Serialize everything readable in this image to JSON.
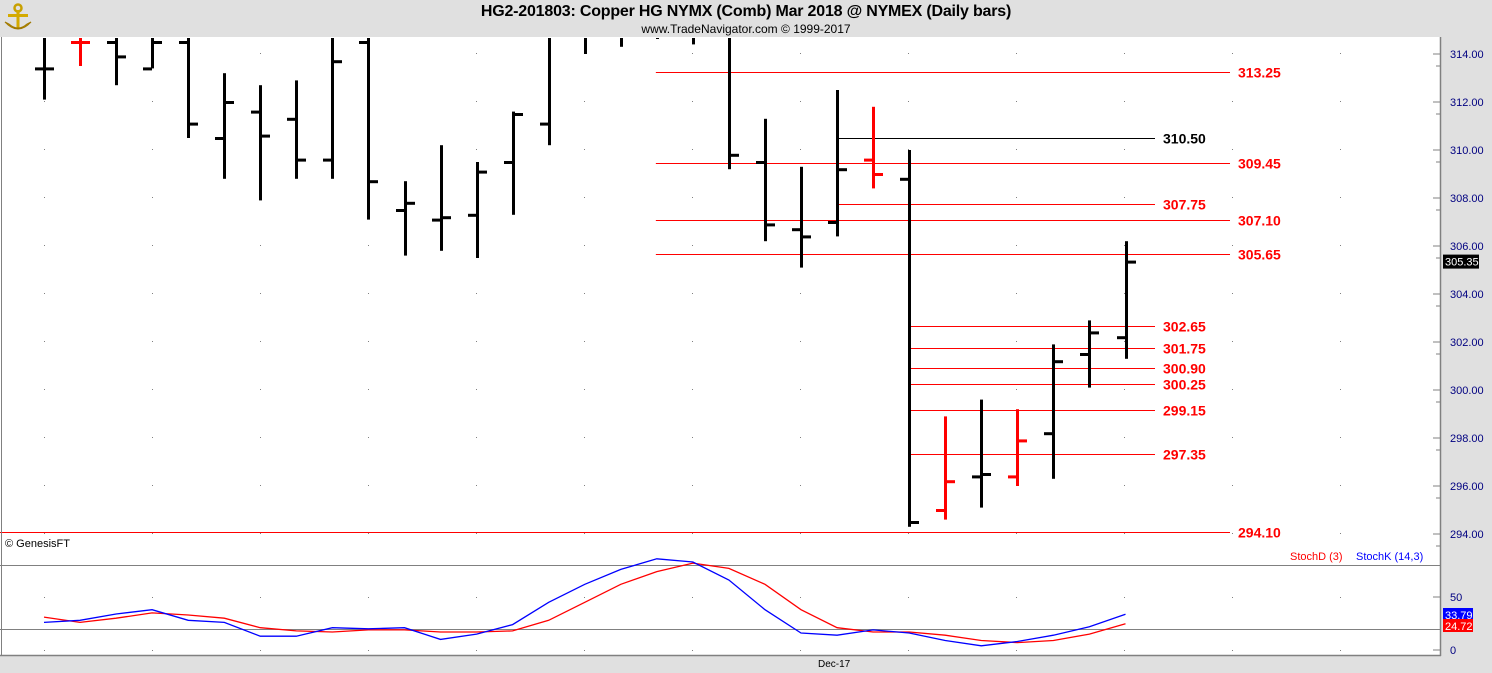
{
  "header": {
    "title": "HG2-201803:  Copper HG NYMX (Comb) Mar 2018 @ NYMEX  (Daily bars)",
    "subtitle": "www.TradeNavigator.com © 1999-2017"
  },
  "copyright": "© GenesisFT",
  "colors": {
    "up": "#000000",
    "down": "#ff0000",
    "stochD": "#ff0000",
    "stochK": "#0000ff",
    "grid": "#808080"
  },
  "chart_data": [
    {
      "type": "ohlc",
      "ylim": [
        294,
        314.8
      ],
      "yticks": [
        "314.00",
        "312.00",
        "310.00",
        "308.00",
        "306.00",
        "304.00",
        "302.00",
        "300.00",
        "298.00",
        "296.00",
        "294.00"
      ],
      "xlabel_ticks": [
        {
          "label": "Dec-17",
          "bar": 22
        }
      ],
      "last_price": "305.35",
      "bars": [
        {
          "h": 316,
          "l": 312.1,
          "o": 313.4,
          "c": 313.4,
          "color": "black"
        },
        {
          "h": 316,
          "l": 313.5,
          "o": 314.5,
          "c": 314.5,
          "color": "red"
        },
        {
          "h": 316,
          "l": 312.7,
          "o": 314.5,
          "c": 313.9,
          "color": "black"
        },
        {
          "h": 316,
          "l": 313.4,
          "o": 313.4,
          "c": 314.5,
          "color": "black"
        },
        {
          "h": 316,
          "l": 310.5,
          "o": 314.5,
          "c": 311.1,
          "color": "black"
        },
        {
          "h": 313.2,
          "l": 308.8,
          "o": 310.5,
          "c": 312.0,
          "color": "black"
        },
        {
          "h": 312.7,
          "l": 307.9,
          "o": 311.6,
          "c": 310.6,
          "color": "black"
        },
        {
          "h": 312.9,
          "l": 308.8,
          "o": 311.3,
          "c": 309.6,
          "color": "black"
        },
        {
          "h": 316,
          "l": 308.8,
          "o": 309.6,
          "c": 313.7,
          "color": "black"
        },
        {
          "h": 316,
          "l": 307.1,
          "o": 314.5,
          "c": 308.7,
          "color": "black"
        },
        {
          "h": 308.7,
          "l": 305.6,
          "o": 307.5,
          "c": 307.8,
          "color": "black"
        },
        {
          "h": 310.2,
          "l": 305.8,
          "o": 307.1,
          "c": 307.2,
          "color": "black"
        },
        {
          "h": 309.5,
          "l": 305.5,
          "o": 307.3,
          "c": 309.1,
          "color": "black"
        },
        {
          "h": 311.6,
          "l": 307.3,
          "o": 309.5,
          "c": 311.5,
          "color": "black"
        },
        {
          "h": 316,
          "l": 310.2,
          "o": 311.1,
          "c": 315.5,
          "color": "black"
        },
        {
          "h": 316,
          "l": 314.0,
          "o": 315.5,
          "c": 315.5,
          "color": "black"
        },
        {
          "h": 316,
          "l": 314.3,
          "o": 315.5,
          "c": 315.5,
          "color": "black"
        },
        {
          "h": 316,
          "l": 315.2,
          "o": 315.5,
          "c": 315.5,
          "color": "black"
        },
        {
          "h": 316,
          "l": 314.4,
          "o": 315.5,
          "c": 315.5,
          "color": "black"
        },
        {
          "h": 316,
          "l": 309.2,
          "o": 315.5,
          "c": 309.8,
          "color": "black"
        },
        {
          "h": 311.3,
          "l": 306.2,
          "o": 309.5,
          "c": 306.9,
          "color": "black"
        },
        {
          "h": 309.3,
          "l": 305.1,
          "o": 306.7,
          "c": 306.4,
          "color": "black"
        },
        {
          "h": 312.5,
          "l": 306.4,
          "o": 307.0,
          "c": 309.2,
          "color": "black"
        },
        {
          "h": 311.8,
          "l": 308.4,
          "o": 309.6,
          "c": 309.0,
          "color": "red"
        },
        {
          "h": 310.0,
          "l": 294.3,
          "o": 308.8,
          "c": 294.5,
          "color": "black"
        },
        {
          "h": 298.9,
          "l": 294.6,
          "o": 295.0,
          "c": 296.2,
          "color": "red"
        },
        {
          "h": 299.6,
          "l": 295.1,
          "o": 296.4,
          "c": 296.5,
          "color": "black"
        },
        {
          "h": 299.2,
          "l": 296.0,
          "o": 296.4,
          "c": 297.9,
          "color": "red"
        },
        {
          "h": 301.9,
          "l": 296.3,
          "o": 298.2,
          "c": 301.2,
          "color": "black"
        },
        {
          "h": 302.9,
          "l": 300.1,
          "o": 301.5,
          "c": 302.4,
          "color": "black"
        },
        {
          "h": 306.2,
          "l": 301.3,
          "o": 302.2,
          "c": 305.35,
          "color": "black"
        }
      ],
      "levels": [
        {
          "value": "313.25",
          "from_bar": 17,
          "color": "red"
        },
        {
          "value": "310.50",
          "from_bar": 22,
          "color": "black",
          "short": true
        },
        {
          "value": "309.45",
          "from_bar": 17,
          "color": "red"
        },
        {
          "value": "307.75",
          "from_bar": 22,
          "color": "red",
          "short": true
        },
        {
          "value": "307.10",
          "from_bar": 17,
          "color": "red"
        },
        {
          "value": "305.65",
          "from_bar": 17,
          "color": "red"
        },
        {
          "value": "302.65",
          "from_bar": 24,
          "color": "red",
          "short": true
        },
        {
          "value": "301.75",
          "from_bar": 24,
          "color": "red",
          "short": true
        },
        {
          "value": "300.90",
          "from_bar": 24,
          "color": "red",
          "short": true
        },
        {
          "value": "300.25",
          "from_bar": 24,
          "color": "red",
          "short": true
        },
        {
          "value": "299.15",
          "from_bar": 24,
          "color": "red",
          "short": true
        },
        {
          "value": "297.35",
          "from_bar": 24,
          "color": "red",
          "short": true
        },
        {
          "value": "294.10",
          "from_bar": 0,
          "color": "red"
        }
      ]
    },
    {
      "type": "line",
      "ylim": [
        0,
        100
      ],
      "yticks": [
        "50",
        "0"
      ],
      "reference_lines": [
        80,
        20
      ],
      "series": [
        {
          "name": "StochD (3)",
          "color": "#ff0000",
          "last": "24.72",
          "values": [
            31,
            26,
            30,
            35,
            33,
            30,
            21,
            18,
            17,
            19,
            19,
            17,
            17,
            18,
            28,
            45,
            62,
            74,
            82,
            77,
            62,
            38,
            21,
            17,
            17,
            14,
            9,
            7,
            9,
            15,
            24.72
          ]
        },
        {
          "name": "StochK (14,3)",
          "color": "#0000ff",
          "last": "33.79",
          "values": [
            26,
            28,
            34,
            38,
            28,
            26,
            13,
            13,
            21,
            20,
            21,
            10,
            15,
            24,
            45,
            62,
            76,
            86,
            83,
            66,
            38,
            16,
            14,
            19,
            16,
            9,
            4,
            8,
            14,
            22,
            33.79
          ]
        }
      ]
    }
  ]
}
